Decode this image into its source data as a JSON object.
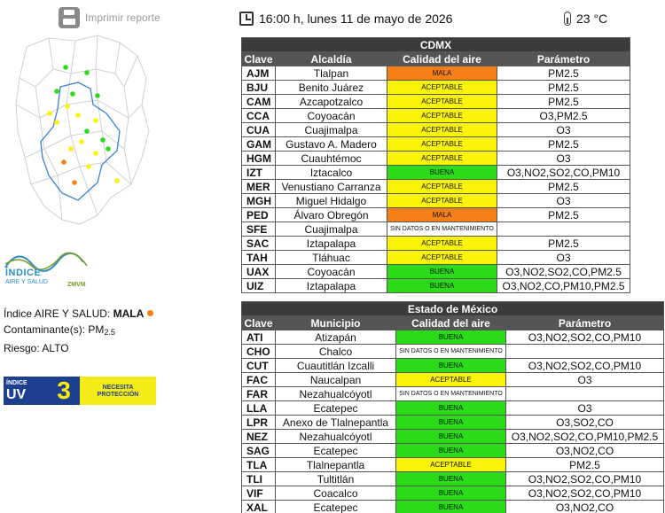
{
  "print": {
    "label": "Imprimir reporte"
  },
  "datetime": "16:00 h, lunes 11 de mayo de 2026",
  "temperature": "23 °C",
  "logo": {
    "title": "ÍNDICE",
    "subtitle": "AIRE Y SALUD",
    "tag": "ZMVM"
  },
  "index": {
    "label": "Índice AIRE Y SALUD:",
    "value": "MALA",
    "dot_color": "#f57f17",
    "pollutant_label": "Contaminante(s): PM",
    "pollutant_sub": "2.5",
    "risk": "Riesgo: ALTO"
  },
  "uv": {
    "small": "ÍNDICE",
    "big": "UV",
    "value": "3",
    "advice_line1": "NECESITA",
    "advice_line2": "PROTECCIÓN"
  },
  "colors": {
    "buena": "#2bdb1a",
    "aceptable": "#fbf306",
    "mala": "#f57f17"
  },
  "cdmx": {
    "title": "CDMX",
    "headers": [
      "Clave",
      "Alcaldía",
      "Calidad del aire",
      "Parámetro"
    ],
    "rows": [
      {
        "clave": "AJM",
        "name": "Tlalpan",
        "quality": "MALA",
        "level": "mala",
        "param": "PM2.5"
      },
      {
        "clave": "BJU",
        "name": "Benito Juárez",
        "quality": "ACEPTABLE",
        "level": "aceptable",
        "param": "PM2.5"
      },
      {
        "clave": "CAM",
        "name": "Azcapotzalco",
        "quality": "ACEPTABLE",
        "level": "aceptable",
        "param": "PM2.5"
      },
      {
        "clave": "CCA",
        "name": "Coyoacán",
        "quality": "ACEPTABLE",
        "level": "aceptable",
        "param": "O3,PM2.5"
      },
      {
        "clave": "CUA",
        "name": "Cuajimalpa",
        "quality": "ACEPTABLE",
        "level": "aceptable",
        "param": "O3"
      },
      {
        "clave": "GAM",
        "name": "Gustavo A. Madero",
        "quality": "ACEPTABLE",
        "level": "aceptable",
        "param": "PM2.5"
      },
      {
        "clave": "HGM",
        "name": "Cuauhtémoc",
        "quality": "ACEPTABLE",
        "level": "aceptable",
        "param": "O3"
      },
      {
        "clave": "IZT",
        "name": "Iztacalco",
        "quality": "BUENA",
        "level": "buena",
        "param": "O3,NO2,SO2,CO,PM10"
      },
      {
        "clave": "MER",
        "name": "Venustiano Carranza",
        "quality": "ACEPTABLE",
        "level": "aceptable",
        "param": "PM2.5"
      },
      {
        "clave": "MGH",
        "name": "Miguel Hidalgo",
        "quality": "ACEPTABLE",
        "level": "aceptable",
        "param": "O3"
      },
      {
        "clave": "PED",
        "name": "Álvaro Obregón",
        "quality": "MALA",
        "level": "mala",
        "param": "PM2.5"
      },
      {
        "clave": "SFE",
        "name": "Cuajimalpa",
        "quality": "SIN DATOS O EN MANTENIMIENTO",
        "level": "sin",
        "param": ""
      },
      {
        "clave": "SAC",
        "name": "Iztapalapa",
        "quality": "ACEPTABLE",
        "level": "aceptable",
        "param": "PM2.5"
      },
      {
        "clave": "TAH",
        "name": "Tláhuac",
        "quality": "ACEPTABLE",
        "level": "aceptable",
        "param": "O3"
      },
      {
        "clave": "UAX",
        "name": "Coyoacán",
        "quality": "BUENA",
        "level": "buena",
        "param": "O3,NO2,SO2,CO,PM2.5"
      },
      {
        "clave": "UIZ",
        "name": "Iztapalapa",
        "quality": "BUENA",
        "level": "buena",
        "param": "O3,NO2,CO,PM10,PM2.5"
      }
    ]
  },
  "edomex": {
    "title": "Estado de México",
    "headers": [
      "Clave",
      "Municipio",
      "Calidad del aire",
      "Parámetro"
    ],
    "rows": [
      {
        "clave": "ATI",
        "name": "Atizapán",
        "quality": "BUENA",
        "level": "buena",
        "param": "O3,NO2,SO2,CO,PM10"
      },
      {
        "clave": "CHO",
        "name": "Chalco",
        "quality": "SIN DATOS O EN MANTENIMIENTO",
        "level": "sin",
        "param": ""
      },
      {
        "clave": "CUT",
        "name": "Cuautitlán Izcalli",
        "quality": "BUENA",
        "level": "buena",
        "param": "O3,NO2,SO2,CO,PM10"
      },
      {
        "clave": "FAC",
        "name": "Naucalpan",
        "quality": "ACEPTABLE",
        "level": "aceptable",
        "param": "O3"
      },
      {
        "clave": "FAR",
        "name": "Nezahualcóyotl",
        "quality": "SIN DATOS O EN MANTENIMIENTO",
        "level": "sin",
        "param": ""
      },
      {
        "clave": "LLA",
        "name": "Ecatepec",
        "quality": "BUENA",
        "level": "buena",
        "param": "O3"
      },
      {
        "clave": "LPR",
        "name": "Anexo de Tlalnepantla",
        "quality": "BUENA",
        "level": "buena",
        "param": "O3,SO2,CO"
      },
      {
        "clave": "NEZ",
        "name": "Nezahualcóyotl",
        "quality": "BUENA",
        "level": "buena",
        "param": "O3,NO2,SO2,CO,PM10,PM2.5"
      },
      {
        "clave": "SAG",
        "name": "Ecatepec",
        "quality": "BUENA",
        "level": "buena",
        "param": "O3,NO2,CO"
      },
      {
        "clave": "TLA",
        "name": "Tlalnepantla",
        "quality": "ACEPTABLE",
        "level": "aceptable",
        "param": "PM2.5"
      },
      {
        "clave": "TLI",
        "name": "Tultitlán",
        "quality": "BUENA",
        "level": "buena",
        "param": "O3,NO2,SO2,CO,PM10"
      },
      {
        "clave": "VIF",
        "name": "Coacalco",
        "quality": "BUENA",
        "level": "buena",
        "param": "O3,NO2,SO2,CO,PM10"
      },
      {
        "clave": "XAL",
        "name": "Ecatepec",
        "quality": "BUENA",
        "level": "buena",
        "param": "O3,NO2,CO"
      }
    ]
  }
}
